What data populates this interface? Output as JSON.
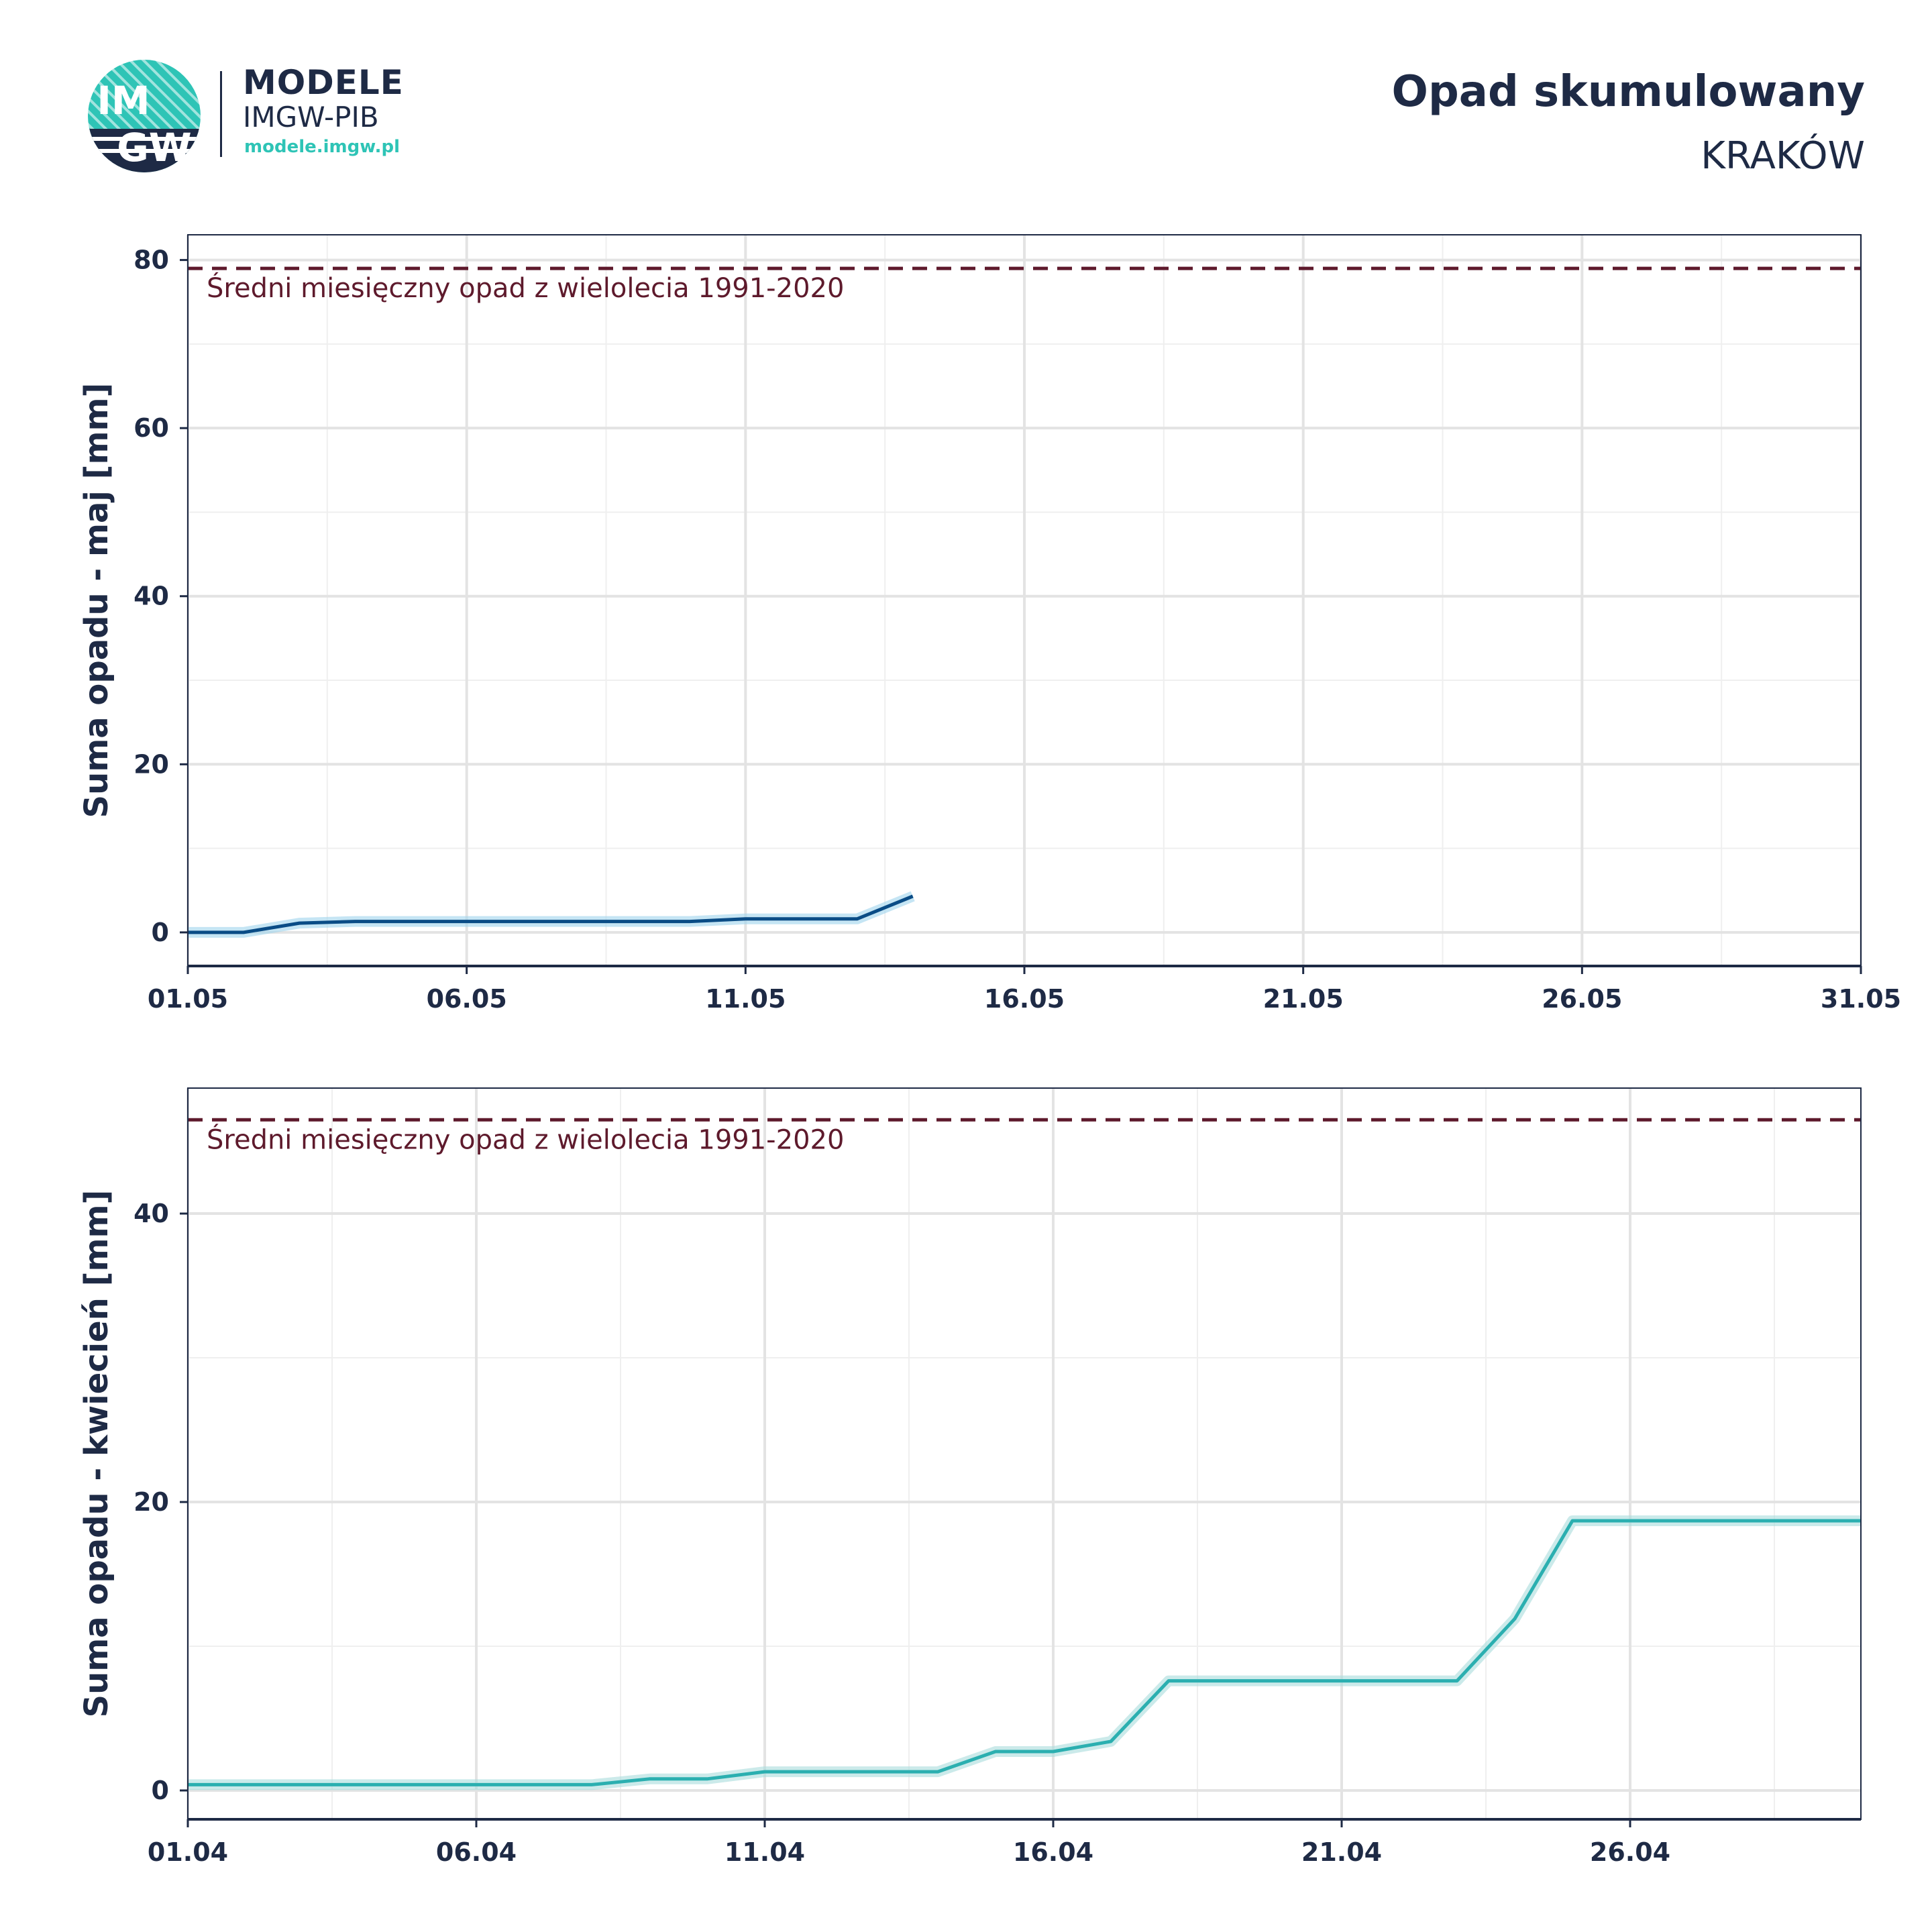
{
  "header": {
    "logo_text_top": "IM",
    "logo_text_bottom": "GW",
    "brand_title": "MODELE",
    "brand_subtitle": "IMGW-PIB",
    "brand_url": "modele.imgw.pl",
    "title": "Opad skumulowany",
    "subtitle": "KRAKÓW"
  },
  "colors": {
    "text": "#1e2a45",
    "may_line": "#0a4c86",
    "may_band": "#9fd3ec",
    "april_line": "#2bafb0",
    "april_band": "#a9dcdc",
    "reference": "#5e1a2c",
    "logo_teal": "#2ec4b6"
  },
  "chart_data": [
    {
      "type": "line",
      "ylabel": "Suma opadu - maj  [mm]",
      "xlabel": "",
      "x_tick_labels": [
        "01.05",
        "06.05",
        "11.05",
        "16.05",
        "21.05",
        "26.05",
        "31.05"
      ],
      "x_tick_days": [
        1,
        6,
        11,
        16,
        21,
        26,
        31
      ],
      "xlim": [
        1,
        31
      ],
      "ylim": [
        -4,
        83
      ],
      "y_ticks": [
        0,
        20,
        40,
        60,
        80
      ],
      "grid": true,
      "reference_line": {
        "value": 79,
        "label": "Średni miesięczny opad z wielolecia 1991-2020"
      },
      "series": [
        {
          "x": [
            1,
            2,
            3,
            4,
            5,
            6,
            7,
            8,
            9,
            10,
            11,
            12,
            13,
            14
          ],
          "y": [
            0.0,
            0.0,
            1.1,
            1.3,
            1.3,
            1.3,
            1.3,
            1.3,
            1.3,
            1.3,
            1.6,
            1.6,
            1.6,
            4.3
          ]
        }
      ]
    },
    {
      "type": "line",
      "ylabel": "Suma opadu - kwiecień  [mm]",
      "xlabel": "",
      "x_tick_labels": [
        "01.04",
        "06.04",
        "11.04",
        "16.04",
        "21.04",
        "26.04"
      ],
      "x_tick_days": [
        1,
        6,
        11,
        16,
        21,
        26
      ],
      "xlim": [
        1,
        30
      ],
      "ylim": [
        -2,
        48.7
      ],
      "y_ticks": [
        0,
        20,
        40
      ],
      "grid": true,
      "reference_line": {
        "value": 46.5,
        "label": "Średni miesięczny opad z wielolecia 1991-2020"
      },
      "series": [
        {
          "x": [
            1,
            2,
            3,
            4,
            5,
            6,
            7,
            8,
            9,
            10,
            11,
            12,
            13,
            14,
            15,
            16,
            17,
            18,
            19,
            20,
            21,
            22,
            23,
            24,
            25,
            26,
            27,
            28,
            29,
            30
          ],
          "y": [
            0.4,
            0.4,
            0.4,
            0.4,
            0.4,
            0.4,
            0.4,
            0.4,
            0.8,
            0.8,
            1.3,
            1.3,
            1.3,
            1.3,
            2.7,
            2.7,
            3.4,
            7.6,
            7.6,
            7.6,
            7.6,
            7.6,
            7.6,
            11.9,
            18.7,
            18.7,
            18.7,
            18.7,
            18.7,
            18.7
          ]
        }
      ]
    }
  ]
}
